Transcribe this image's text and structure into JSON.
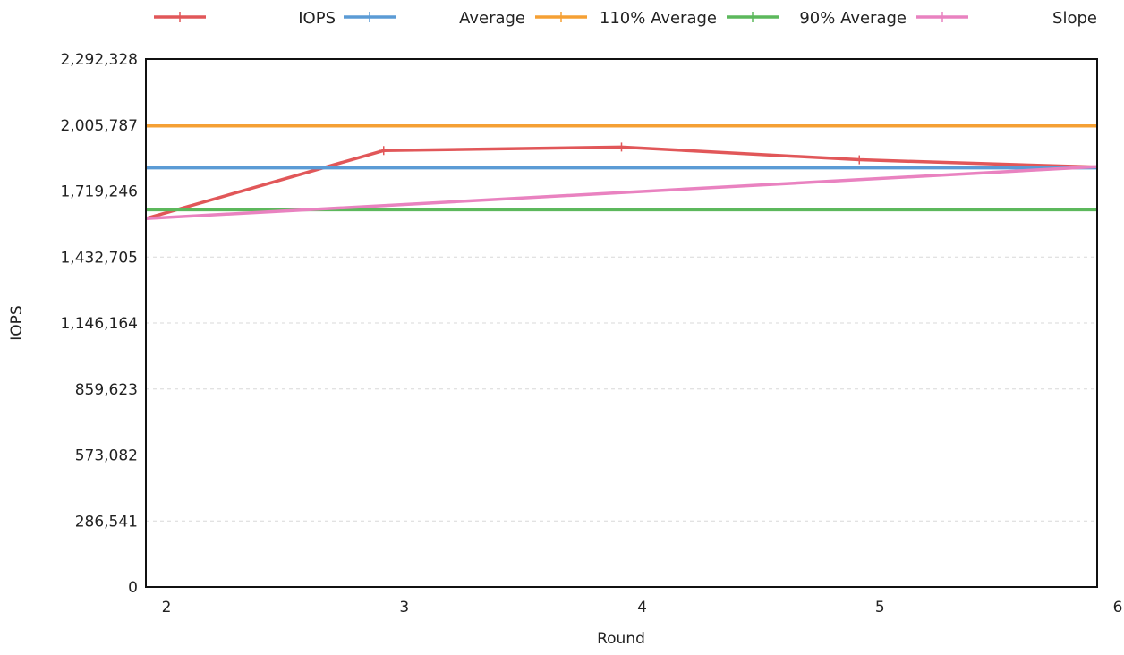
{
  "chart_data": {
    "type": "line",
    "title": "",
    "xlabel": "Round",
    "ylabel": "IOPS",
    "x": [
      2,
      3,
      4,
      5,
      6
    ],
    "x_ticks": [
      "2",
      "3",
      "4",
      "5",
      "6"
    ],
    "xlim": [
      2,
      6
    ],
    "ylim": [
      0,
      2292328
    ],
    "y_ticks": [
      0,
      286541,
      573082,
      859623,
      1146164,
      1432705,
      1719246,
      2005787,
      2292328
    ],
    "y_tick_labels": [
      "0",
      "286,541",
      "573,082",
      "859,623",
      "1,146,164",
      "1,432,705",
      "1,719,246",
      "2,005,787",
      "2,292,328"
    ],
    "grid": "horizontal dashed",
    "legend_position": "top",
    "series": [
      {
        "name": "IOPS",
        "color": "#e15759",
        "marker": "plus",
        "x": [
          2,
          3,
          4,
          5,
          6
        ],
        "values": [
          1600000,
          1895000,
          1910000,
          1855000,
          1823000
        ]
      },
      {
        "name": "Average",
        "color": "#5b9bd5",
        "marker": "plus",
        "x": [
          2,
          6
        ],
        "values": [
          1820000,
          1820000
        ]
      },
      {
        "name": "110% Average",
        "color": "#f5a034",
        "marker": "plus",
        "x": [
          2,
          6
        ],
        "values": [
          2002000,
          2002000
        ]
      },
      {
        "name": "90% Average",
        "color": "#5cb85c",
        "marker": "plus",
        "x": [
          2,
          6
        ],
        "values": [
          1638000,
          1638000
        ]
      },
      {
        "name": "Slope",
        "color": "#e982c0",
        "marker": "plus",
        "x": [
          2,
          6
        ],
        "values": [
          1600000,
          1825000
        ]
      }
    ]
  }
}
